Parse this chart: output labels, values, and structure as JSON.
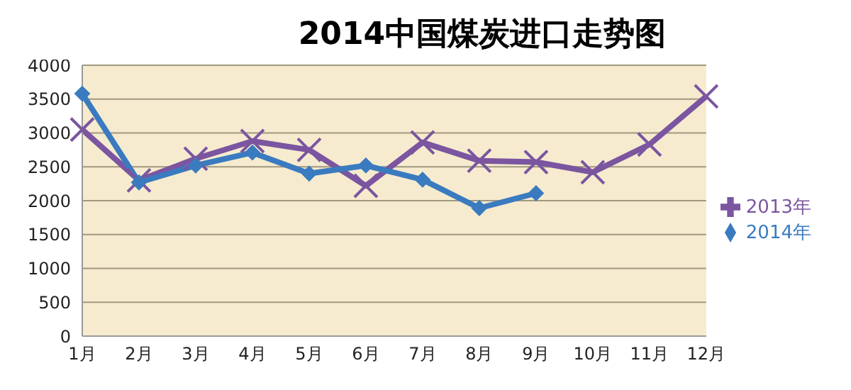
{
  "chart_data": {
    "type": "line",
    "title": "2014中国煤炭进口走势图",
    "categories": [
      "1月",
      "2月",
      "3月",
      "4月",
      "5月",
      "6月",
      "7月",
      "8月",
      "9月",
      "10月",
      "11月",
      "12月"
    ],
    "series": [
      {
        "name": "2013年",
        "color": "#7b55a0",
        "marker": "cross",
        "values": [
          3050,
          2300,
          2620,
          2880,
          2750,
          2220,
          2860,
          2590,
          2570,
          2420,
          2830,
          3540
        ]
      },
      {
        "name": "2014年",
        "color": "#3a7bc0",
        "marker": "diamond",
        "values": [
          3580,
          2270,
          2520,
          2710,
          2400,
          2520,
          2310,
          1890,
          2110,
          null,
          null,
          null
        ]
      }
    ],
    "ylim": [
      0,
      4000
    ],
    "yticks": [
      0,
      500,
      1000,
      1500,
      2000,
      2500,
      3000,
      3500,
      4000
    ],
    "grid": "y",
    "legend": "right"
  }
}
